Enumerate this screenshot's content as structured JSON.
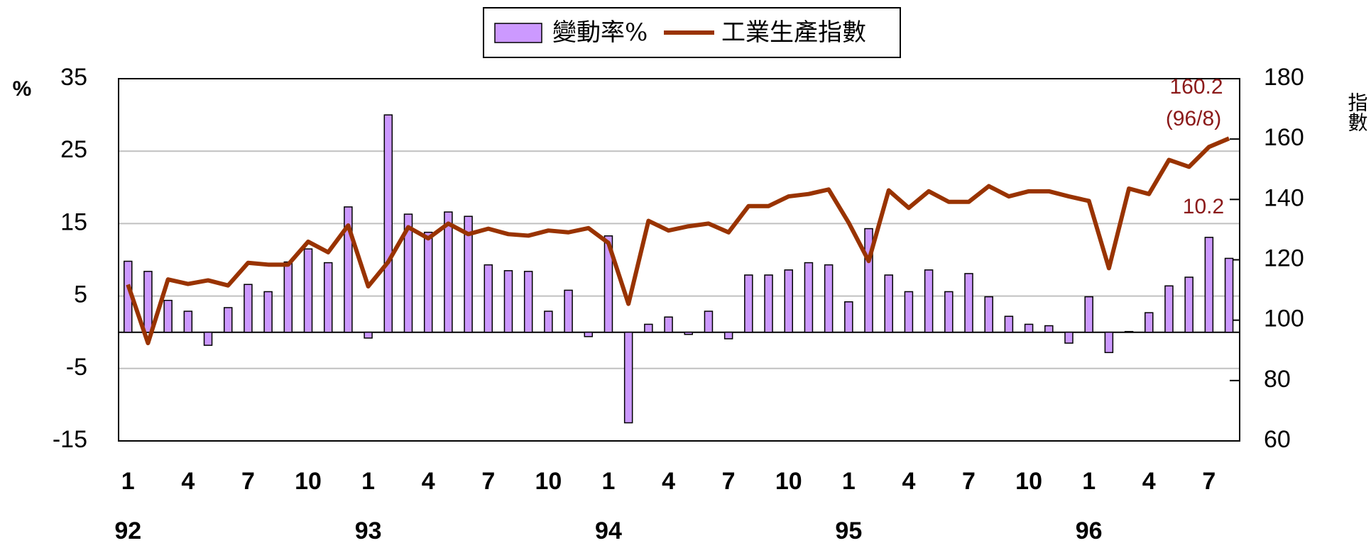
{
  "chart_data": {
    "type": "bar_line",
    "legend": [
      "變動率%",
      "工業生產指數"
    ],
    "y_label": "%",
    "y2_label": "指數",
    "categories": [
      "1",
      null,
      null,
      "4",
      null,
      null,
      "7",
      null,
      null,
      "10",
      null,
      null,
      "1",
      null,
      null,
      "4",
      null,
      null,
      "7",
      null,
      null,
      "10",
      null,
      null,
      "1",
      null,
      null,
      "4",
      null,
      null,
      "7",
      null,
      null,
      "10",
      null,
      null,
      "1",
      null,
      null,
      "4",
      null,
      null,
      "7",
      null,
      null,
      "10",
      null,
      null,
      "1",
      null,
      null,
      "4",
      null,
      null,
      "7",
      null
    ],
    "years": [
      "92",
      "93",
      "94",
      "95",
      "96"
    ],
    "series": [
      {
        "name": "變動率%",
        "type": "bar",
        "color": "#cc99ff",
        "values": [
          9.8,
          8.4,
          4.4,
          2.9,
          -1.8,
          3.4,
          6.6,
          5.6,
          9.7,
          11.5,
          9.6,
          17.3,
          -0.8,
          30.0,
          16.3,
          13.8,
          16.6,
          16.0,
          9.3,
          8.5,
          8.4,
          2.9,
          5.8,
          -0.6,
          13.3,
          -12.5,
          1.1,
          2.1,
          -0.3,
          2.9,
          -0.9,
          7.9,
          7.9,
          8.6,
          9.6,
          9.3,
          4.2,
          14.3,
          7.9,
          5.6,
          8.6,
          5.6,
          8.1,
          4.9,
          2.2,
          1.1,
          0.9,
          -1.5,
          4.9,
          -2.8,
          0.1,
          2.7,
          6.4,
          7.6,
          13.1,
          10.2
        ]
      },
      {
        "name": "工業生產指數",
        "type": "line",
        "axis": "y2",
        "color": "#993300",
        "values": [
          111.8,
          92.4,
          113.5,
          112.0,
          113.2,
          111.5,
          119.0,
          118.4,
          118.4,
          126.0,
          122.5,
          131.4,
          111.2,
          119.3,
          130.8,
          127.1,
          132.0,
          128.5,
          130.3,
          128.5,
          128.0,
          129.7,
          129.1,
          130.5,
          125.6,
          105.4,
          132.9,
          129.7,
          131.1,
          132.0,
          129.1,
          137.8,
          137.8,
          141.0,
          141.8,
          143.3,
          132.3,
          119.6,
          143.0,
          137.2,
          142.7,
          139.2,
          139.2,
          144.4,
          141.0,
          142.7,
          142.7,
          141.0,
          139.5,
          117.2,
          143.6,
          141.8,
          153.1,
          150.8,
          157.4,
          160.2
        ]
      }
    ],
    "annotations": [
      {
        "text": "160.2",
        "color": "#8b1a1a"
      },
      {
        "text": "(96/8)",
        "color": "#8b1a1a"
      },
      {
        "text": "10.2",
        "color": "#8b1a1a"
      }
    ],
    "ylim": [
      -15,
      35
    ],
    "yticks": [
      -15,
      -5,
      5,
      15,
      25,
      35
    ],
    "y2lim": [
      60,
      180
    ],
    "y2ticks": [
      60,
      80,
      100,
      120,
      140,
      160,
      180
    ],
    "grid": true
  }
}
